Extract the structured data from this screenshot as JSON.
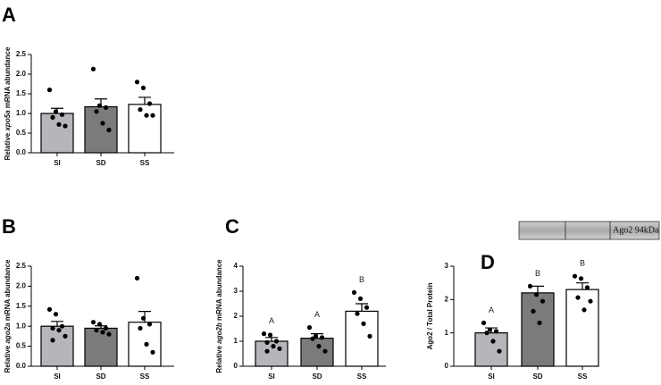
{
  "chart_data": [
    {
      "type": "bar",
      "panel": "A",
      "ylabel": [
        "Relative ",
        "xpo5a",
        " mRNA abundance"
      ],
      "categories": [
        "SI",
        "SD",
        "SS"
      ],
      "colors": [
        "#b5b5ba",
        "#7b7b7b",
        "#ffffff"
      ],
      "values": [
        1.0,
        1.17,
        1.23
      ],
      "errors": [
        0.13,
        0.2,
        0.18
      ],
      "points": [
        [
          1.6,
          1.05,
          0.97,
          0.9,
          0.72,
          0.68
        ],
        [
          2.13,
          1.2,
          1.15,
          1.05,
          0.75,
          0.58
        ],
        [
          1.8,
          1.65,
          1.25,
          1.1,
          0.95,
          0.95
        ]
      ],
      "ylim": [
        0,
        2.5
      ],
      "yticks": [
        {
          "value": 0,
          "label": "0.0"
        },
        {
          "value": 0.5,
          "label": "0.5"
        },
        {
          "value": 1,
          "label": "1.0"
        },
        {
          "value": 1.5,
          "label": "1.5"
        },
        {
          "value": 2,
          "label": "2.0"
        },
        {
          "value": 2.5,
          "label": "2.5"
        }
      ]
    },
    {
      "type": "bar",
      "panel": "B",
      "ylabel": [
        "Relative ",
        "ago2a",
        " mRNA abundance"
      ],
      "categories": [
        "SI",
        "SD",
        "SS"
      ],
      "colors": [
        "#b5b5ba",
        "#7b7b7b",
        "#ffffff"
      ],
      "values": [
        1.0,
        0.95,
        1.1
      ],
      "errors": [
        0.12,
        0.06,
        0.27
      ],
      "points": [
        [
          1.42,
          1.3,
          1.0,
          0.95,
          0.9,
          0.75,
          0.65
        ],
        [
          1.1,
          1.05,
          0.95,
          0.9,
          0.85,
          0.8
        ],
        [
          2.2,
          1.2,
          1.05,
          0.95,
          0.55,
          0.35
        ]
      ],
      "ylim": [
        0,
        2.5
      ],
      "yticks": [
        {
          "value": 0,
          "label": "0.0"
        },
        {
          "value": 0.5,
          "label": "0.5"
        },
        {
          "value": 1,
          "label": "1.0"
        },
        {
          "value": 1.5,
          "label": "1.5"
        },
        {
          "value": 2,
          "label": "2.0"
        },
        {
          "value": 2.5,
          "label": "2.5"
        }
      ]
    },
    {
      "type": "bar",
      "panel": "C",
      "ylabel": [
        "Relative ",
        "ago2b",
        " mRNA abundance"
      ],
      "categories": [
        "SI",
        "SD",
        "SS"
      ],
      "colors": [
        "#b5b5ba",
        "#7b7b7b",
        "#ffffff"
      ],
      "values": [
        1.0,
        1.12,
        2.2
      ],
      "errors": [
        0.15,
        0.18,
        0.3
      ],
      "points": [
        [
          1.3,
          1.25,
          1.0,
          0.95,
          0.8,
          0.7,
          0.6
        ],
        [
          1.55,
          1.2,
          1.15,
          1.1,
          0.8,
          0.6
        ],
        [
          2.95,
          2.7,
          2.35,
          2.1,
          1.7,
          1.2
        ]
      ],
      "annotations": [
        "A",
        "A",
        "B"
      ],
      "ylim": [
        0,
        4
      ],
      "yticks": [
        0,
        1,
        2,
        3,
        4
      ]
    },
    {
      "type": "bar",
      "panel": "D",
      "ylabel": [
        "Ago2 / Total Protein"
      ],
      "blot_label": "Ago2 94kDa",
      "categories": [
        "SI",
        "SD",
        "SS"
      ],
      "colors": [
        "#b5b5ba",
        "#7b7b7b",
        "#ffffff"
      ],
      "values": [
        1.0,
        2.2,
        2.3
      ],
      "errors": [
        0.15,
        0.2,
        0.2
      ],
      "points": [
        [
          1.3,
          1.1,
          1.05,
          1.0,
          0.75,
          0.45
        ],
        [
          2.4,
          2.15,
          1.95,
          1.65,
          1.3
        ],
        [
          2.7,
          2.63,
          2.36,
          2.06,
          1.69,
          1.95
        ]
      ],
      "annotations": [
        "A",
        "B",
        "B"
      ],
      "ylim": [
        0,
        3
      ],
      "yticks": [
        0,
        1,
        2,
        3
      ]
    }
  ]
}
